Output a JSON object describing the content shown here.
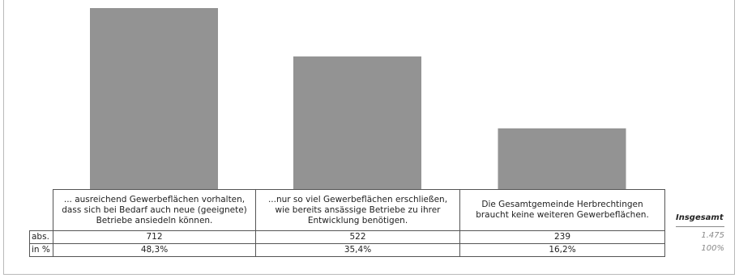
{
  "chart_data": {
    "type": "bar",
    "categories": [
      "... ausreichend Gewerbeflächen vorhalten, dass sich bei Bedarf auch neue (geeignete) Betriebe ansiedeln können.",
      "...nur so viel Gewerbeflächen erschließen, wie bereits ansässige Betriebe zu ihrer Entwicklung benötigen.",
      "Die Gesamtgemeinde Herbrechtingen braucht keine weiteren Gewerbeflächen."
    ],
    "values": [
      712,
      522,
      239
    ],
    "ylim": [
      0,
      712
    ],
    "bar_color": "#939393",
    "table": {
      "rows": [
        {
          "label": "abs.",
          "values": [
            "712",
            "522",
            "239"
          ]
        },
        {
          "label": "in %",
          "values": [
            "48,3%",
            "35,4%",
            "16,2%"
          ]
        }
      ]
    },
    "total": {
      "label": "Insgesamt",
      "abs": "1.475",
      "pct": "100%"
    }
  }
}
